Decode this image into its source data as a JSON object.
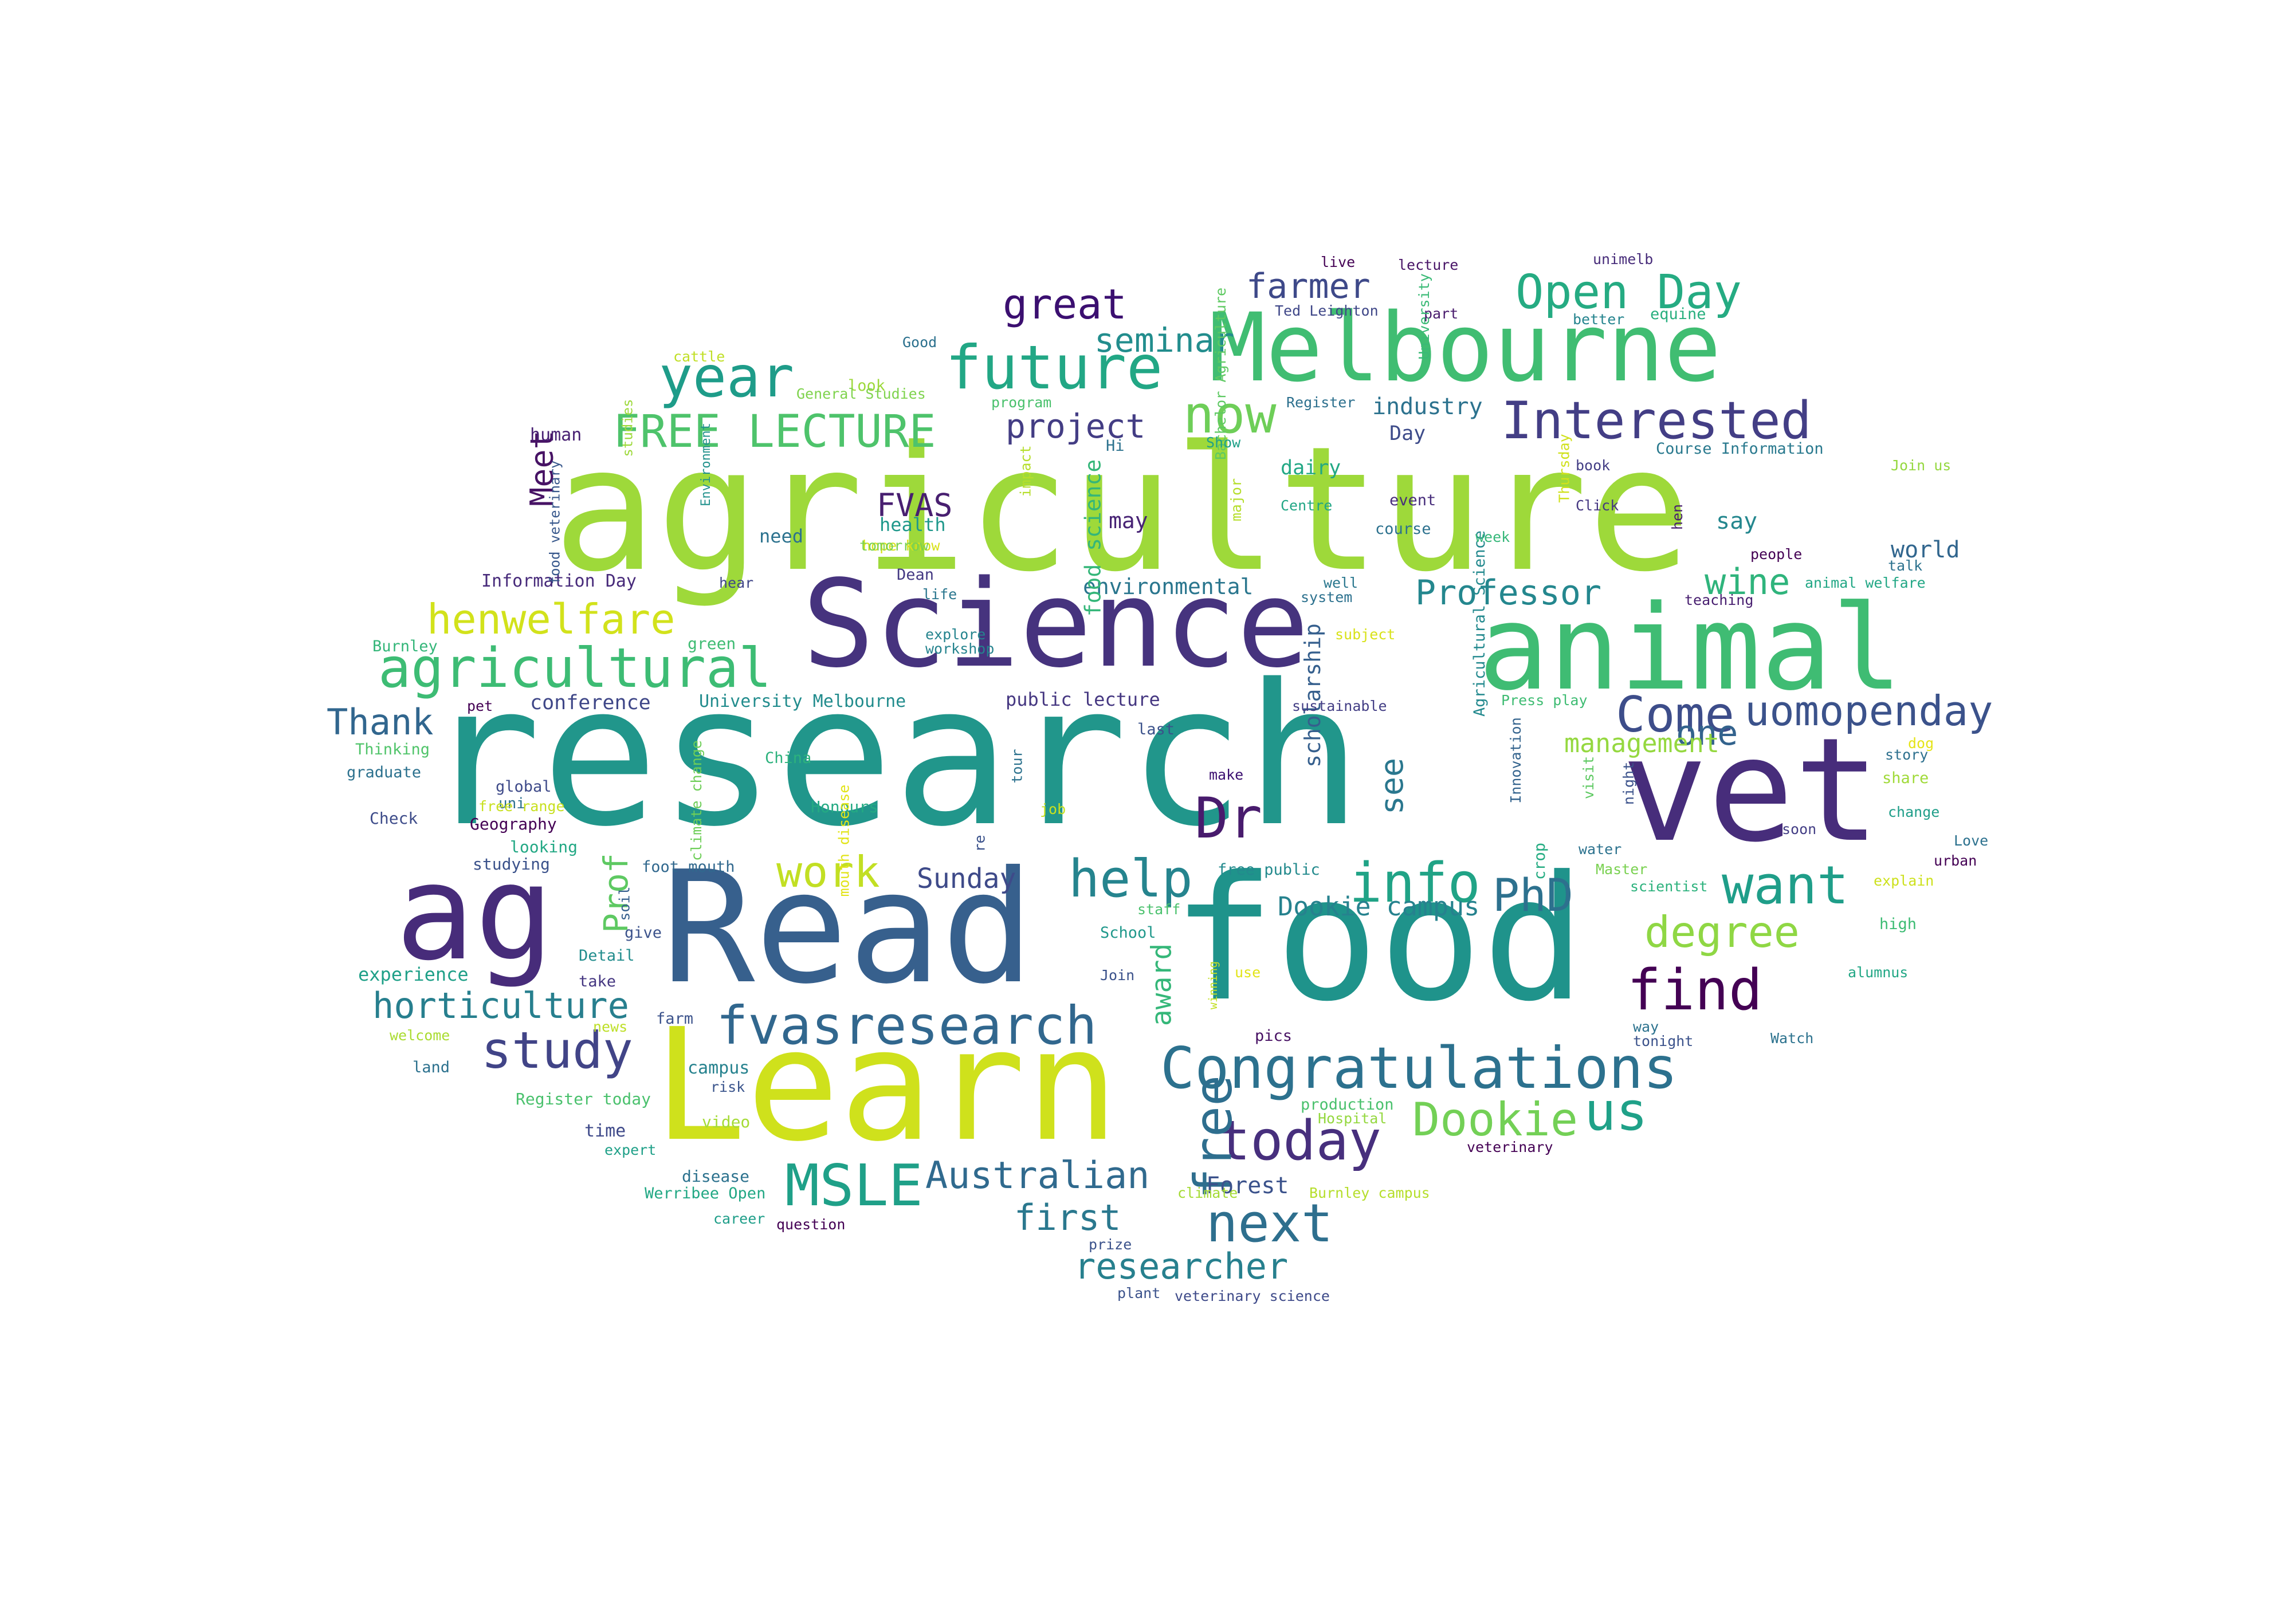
{
  "words": [
    {
      "text": "agriculture",
      "color": "#9ed93a"
    },
    {
      "text": "research",
      "color": "#21968b"
    },
    {
      "text": "Read",
      "color": "#37608d"
    },
    {
      "text": "food",
      "color": "#1f938b"
    },
    {
      "text": "Learn",
      "color": "#cfe11c"
    },
    {
      "text": "Science",
      "color": "#46337e"
    },
    {
      "text": "vet",
      "color": "#472d7b"
    },
    {
      "text": "animal",
      "color": "#3fbc73"
    },
    {
      "text": "Melbourne",
      "color": "#40bd72"
    },
    {
      "text": "ag",
      "color": "#472c7a"
    },
    {
      "text": "Congratulations",
      "color": "#2c718e"
    },
    {
      "text": "fvasresearch",
      "color": "#31678e"
    },
    {
      "text": "Interested",
      "color": "#433e85"
    },
    {
      "text": "agricultural",
      "color": "#3dbc74"
    },
    {
      "text": "future",
      "color": "#22a785"
    },
    {
      "text": "Open Day",
      "color": "#25ab82"
    },
    {
      "text": "year",
      "color": "#1e9c89"
    },
    {
      "text": "today",
      "color": "#472f7d"
    },
    {
      "text": "find",
      "color": "#440154"
    },
    {
      "text": "next",
      "color": "#2e6f8e"
    },
    {
      "text": "FREE LECTURE",
      "color": "#4ec36b"
    },
    {
      "text": "uomopenday",
      "color": "#3b528b"
    },
    {
      "text": "Come",
      "color": "#3d4d8a"
    },
    {
      "text": "now",
      "color": "#6ece58"
    },
    {
      "text": "study",
      "color": "#414487"
    },
    {
      "text": "MSLE",
      "color": "#1fa088"
    },
    {
      "text": "info",
      "color": "#20a386"
    },
    {
      "text": "want",
      "color": "#1f9e89"
    },
    {
      "text": "help",
      "color": "#25848e"
    },
    {
      "text": "Dookie",
      "color": "#73d056"
    },
    {
      "text": "us",
      "color": "#1fa188"
    },
    {
      "text": "free",
      "color": "#2e6e8e"
    },
    {
      "text": "work",
      "color": "#c2df23"
    },
    {
      "text": "Dr",
      "color": "#481b6d"
    },
    {
      "text": "degree",
      "color": "#8fd744"
    },
    {
      "text": "horticulture",
      "color": "#277f8e"
    },
    {
      "text": "henwelfare",
      "color": "#d2e21b"
    },
    {
      "text": "Australian",
      "color": "#306a8e"
    },
    {
      "text": "researcher",
      "color": "#27808e"
    },
    {
      "text": "great",
      "color": "#3b0f70"
    },
    {
      "text": "PhD",
      "color": "#2d718e"
    },
    {
      "text": "Thank",
      "color": "#31668e"
    },
    {
      "text": "Professor",
      "color": "#24878e"
    },
    {
      "text": "first",
      "color": "#2a788e"
    },
    {
      "text": "farmer",
      "color": "#3e4989"
    },
    {
      "text": "seminar",
      "color": "#228d8d"
    },
    {
      "text": "project",
      "color": "#433d84"
    },
    {
      "text": "wine",
      "color": "#2fb47c"
    },
    {
      "text": "one",
      "color": "#33638d"
    },
    {
      "text": "Prof",
      "color": "#5ec962"
    },
    {
      "text": "FVAS",
      "color": "#481f70"
    },
    {
      "text": "Meet",
      "color": "#471365"
    },
    {
      "text": "see",
      "color": "#2a778e"
    },
    {
      "text": "Sunday",
      "color": "#3e4a89"
    },
    {
      "text": "management",
      "color": "#95d840"
    },
    {
      "text": "Dookie campus",
      "color": "#26828e"
    },
    {
      "text": "scholarship",
      "color": "#355f8d"
    },
    {
      "text": "award",
      "color": "#35b779"
    },
    {
      "text": "world",
      "color": "#31668e"
    },
    {
      "text": "industry",
      "color": "#2c728e"
    },
    {
      "text": "environmental",
      "color": "#2a768e"
    },
    {
      "text": "conference",
      "color": "#3f4788"
    },
    {
      "text": "food science",
      "color": "#34b679"
    },
    {
      "text": "say",
      "color": "#24878e"
    },
    {
      "text": "may",
      "color": "#482475"
    },
    {
      "text": "public lecture",
      "color": "#453781"
    },
    {
      "text": "dairy",
      "color": "#22a884"
    },
    {
      "text": "Day",
      "color": "#3e4c8a"
    },
    {
      "text": "need",
      "color": "#2c728e"
    },
    {
      "text": "health",
      "color": "#1f988b"
    },
    {
      "text": "University Melbourne",
      "color": "#228c8d"
    },
    {
      "text": "Forest",
      "color": "#3b528b"
    },
    {
      "text": "Agricultural Science",
      "color": "#23898e"
    },
    {
      "text": "Information Day",
      "color": "#472a7a"
    },
    {
      "text": "experience",
      "color": "#1fa088"
    },
    {
      "text": "human",
      "color": "#482173"
    },
    {
      "text": "time",
      "color": "#3e4989"
    },
    {
      "text": "Register today",
      "color": "#4ac16d"
    },
    {
      "text": "Bachelor Agriculture",
      "color": "#5ec962"
    },
    {
      "text": "Course Information",
      "color": "#29798e"
    },
    {
      "text": "graduate",
      "color": "#2c718e"
    },
    {
      "text": "Check",
      "color": "#3e4c8a"
    },
    {
      "text": "Geography",
      "color": "#440154"
    },
    {
      "text": "looking",
      "color": "#22a884"
    },
    {
      "text": "studying",
      "color": "#3b528b"
    },
    {
      "text": "uni",
      "color": "#2d708e"
    },
    {
      "text": "soil",
      "color": "#355f8d"
    },
    {
      "text": "give",
      "color": "#3b528b"
    },
    {
      "text": "Detail",
      "color": "#228d8d"
    },
    {
      "text": "take",
      "color": "#453781"
    },
    {
      "text": "farm",
      "color": "#3b528b"
    },
    {
      "text": "campus",
      "color": "#26828e"
    },
    {
      "text": "risk",
      "color": "#3a548c"
    },
    {
      "text": "disease",
      "color": "#2c728e"
    },
    {
      "text": "question",
      "color": "#440154"
    },
    {
      "text": "career",
      "color": "#1f9e89"
    },
    {
      "text": "Werribee Open",
      "color": "#22a884"
    },
    {
      "text": "video",
      "color": "#a5db36"
    },
    {
      "text": "expert",
      "color": "#1fa088"
    },
    {
      "text": "news",
      "color": "#bddf26"
    },
    {
      "text": "welcome",
      "color": "#aadc32"
    },
    {
      "text": "land",
      "color": "#2c718e"
    },
    {
      "text": "global",
      "color": "#3e4a89"
    },
    {
      "text": "free range",
      "color": "#c8e020"
    },
    {
      "text": "China",
      "color": "#2db27d"
    },
    {
      "text": "Honours",
      "color": "#24aa83"
    },
    {
      "text": "climate change",
      "color": "#6ece58"
    },
    {
      "text": "foot mouth",
      "color": "#31688e"
    },
    {
      "text": "mouth disease",
      "color": "#e2e418"
    },
    {
      "text": "Burnley",
      "color": "#34b679"
    },
    {
      "text": "Thinking",
      "color": "#50c46a"
    },
    {
      "text": "pet",
      "color": "#440154"
    },
    {
      "text": "green",
      "color": "#3fbc73"
    },
    {
      "text": "explore",
      "color": "#25848e"
    },
    {
      "text": "workshop",
      "color": "#25838e"
    },
    {
      "text": "hear",
      "color": "#404688"
    },
    {
      "text": "life",
      "color": "#2a768e"
    },
    {
      "text": "Dean",
      "color": "#443983"
    },
    {
      "text": "hope know",
      "color": "#d8e219"
    },
    {
      "text": "tomorrow",
      "color": "#7ad151"
    },
    {
      "text": "look",
      "color": "#9dd93b"
    },
    {
      "text": "General Studies",
      "color": "#7fd34e"
    },
    {
      "text": "cattle",
      "color": "#c0df25"
    },
    {
      "text": "studies",
      "color": "#9dd93b"
    },
    {
      "text": "food veterinary",
      "color": "#38588c"
    },
    {
      "text": "Environment",
      "color": "#21918c"
    },
    {
      "text": "Good",
      "color": "#2c718e"
    },
    {
      "text": "program",
      "color": "#4ac16d"
    },
    {
      "text": "impact",
      "color": "#b5de2b"
    },
    {
      "text": "live",
      "color": "#440154"
    },
    {
      "text": "lecture",
      "color": "#481467"
    },
    {
      "text": "Ted Leighton",
      "color": "#3f4788"
    },
    {
      "text": "part",
      "color": "#481a6c"
    },
    {
      "text": "University",
      "color": "#3aba76"
    },
    {
      "text": "unimelb",
      "color": "#472c7a"
    },
    {
      "text": "better",
      "color": "#25848e"
    },
    {
      "text": "equine",
      "color": "#29af7f"
    },
    {
      "text": "Register",
      "color": "#2d708e"
    },
    {
      "text": "Show",
      "color": "#1fa188"
    },
    {
      "text": "Hi",
      "color": "#2c728e"
    },
    {
      "text": "major",
      "color": "#b5de2b"
    },
    {
      "text": "Centre",
      "color": "#21a685"
    },
    {
      "text": "event",
      "color": "#472d7b"
    },
    {
      "text": "course",
      "color": "#2c718e"
    },
    {
      "text": "Thursday",
      "color": "#d0e11c"
    },
    {
      "text": "week",
      "color": "#35b779"
    },
    {
      "text": "book",
      "color": "#433e85"
    },
    {
      "text": "Click",
      "color": "#453882"
    },
    {
      "text": "hen",
      "color": "#481f70"
    },
    {
      "text": "Join us",
      "color": "#95d840"
    },
    {
      "text": "talk",
      "color": "#2c728e"
    },
    {
      "text": "people",
      "color": "#440154"
    },
    {
      "text": "animal welfare",
      "color": "#22a785"
    },
    {
      "text": "teaching",
      "color": "#481f70"
    },
    {
      "text": "well",
      "color": "#2a778e"
    },
    {
      "text": "system",
      "color": "#2c718e"
    },
    {
      "text": "subject",
      "color": "#d8e219"
    },
    {
      "text": "sustainable",
      "color": "#433e85"
    },
    {
      "text": "last",
      "color": "#3b528b"
    },
    {
      "text": "Press play",
      "color": "#3fbc73"
    },
    {
      "text": "Innovation",
      "color": "#33638d"
    },
    {
      "text": "dog",
      "color": "#e5e419"
    },
    {
      "text": "story",
      "color": "#2d708e"
    },
    {
      "text": "share",
      "color": "#a0da39"
    },
    {
      "text": "change",
      "color": "#1f9e89"
    },
    {
      "text": "soon",
      "color": "#433e85"
    },
    {
      "text": "Love",
      "color": "#2c718e"
    },
    {
      "text": "urban",
      "color": "#440154"
    },
    {
      "text": "explain",
      "color": "#cde11d"
    },
    {
      "text": "high",
      "color": "#3dbc74"
    },
    {
      "text": "alumnus",
      "color": "#22a785"
    },
    {
      "text": "Master",
      "color": "#7ad151"
    },
    {
      "text": "scientist",
      "color": "#2db27d"
    },
    {
      "text": "crop",
      "color": "#25ac82"
    },
    {
      "text": "water",
      "color": "#2c728e"
    },
    {
      "text": "visit",
      "color": "#5ec962"
    },
    {
      "text": "night",
      "color": "#3b528b"
    },
    {
      "text": "make",
      "color": "#3b0f70"
    },
    {
      "text": "tour",
      "color": "#2c728e"
    },
    {
      "text": "re",
      "color": "#3b528b"
    },
    {
      "text": "job",
      "color": "#c8e020"
    },
    {
      "text": "free public",
      "color": "#238a8d"
    },
    {
      "text": "staff",
      "color": "#4ac16d"
    },
    {
      "text": "School",
      "color": "#1f988b"
    },
    {
      "text": "Join",
      "color": "#3b528b"
    },
    {
      "text": "use",
      "color": "#e2e418"
    },
    {
      "text": "winning",
      "color": "#c2df23"
    },
    {
      "text": "pics",
      "color": "#471063"
    },
    {
      "text": "production",
      "color": "#4ac16d"
    },
    {
      "text": "Hospital",
      "color": "#95d840"
    },
    {
      "text": "Burnley campus",
      "color": "#b5de2b"
    },
    {
      "text": "climate",
      "color": "#a5db36"
    },
    {
      "text": "prize",
      "color": "#3b528b"
    },
    {
      "text": "plant",
      "color": "#3b528b"
    },
    {
      "text": "veterinary science",
      "color": "#3e4a89"
    },
    {
      "text": "veterinary",
      "color": "#440154"
    },
    {
      "text": "way",
      "color": "#2c728e"
    },
    {
      "text": "Watch",
      "color": "#2c728e"
    },
    {
      "text": "tonight",
      "color": "#3b528b"
    }
  ]
}
